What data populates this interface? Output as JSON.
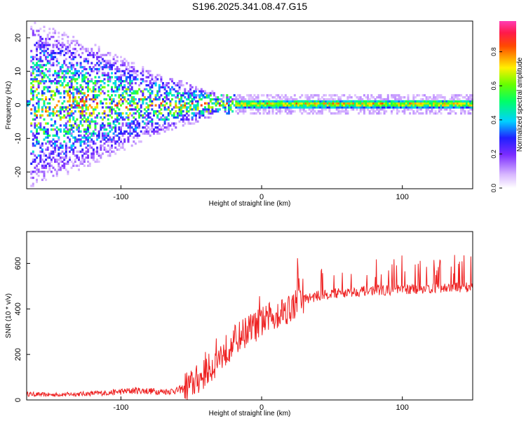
{
  "figure_title": "S196.2025.341.08.47.G15",
  "chart_data": [
    {
      "type": "heatmap",
      "title": "S196.2025.341.08.47.G15",
      "xlabel": "Height of straight line (km)",
      "ylabel": "Frequency (Hz)",
      "xlim": [
        -167,
        150
      ],
      "ylim": [
        -25,
        25
      ],
      "xticks": [
        -100,
        0,
        100
      ],
      "yticks": [
        -20,
        -10,
        0,
        10,
        20
      ],
      "colorbar": {
        "label": "Normalized spectral amplitude",
        "range": [
          0,
          0.98
        ],
        "ticks": [
          "0.0",
          "0.2",
          "0.4",
          "0.6",
          "0.8"
        ]
      },
      "ridge": [
        {
          "x": -165,
          "spread": 25
        },
        {
          "x": -120,
          "spread": 18
        },
        {
          "x": -80,
          "spread": 10
        },
        {
          "x": -50,
          "spread": 6
        },
        {
          "x": -30,
          "spread": 3
        },
        {
          "x": -20,
          "spread": 1.5
        },
        {
          "x": 150,
          "spread": 1.5
        }
      ]
    },
    {
      "type": "line",
      "xlabel": "Height of straight line (km)",
      "ylabel": "SNR (10 * v/v)",
      "xlim": [
        -167,
        150
      ],
      "ylim": [
        0,
        740
      ],
      "xticks": [
        -100,
        0,
        100
      ],
      "yticks": [
        0,
        200,
        400,
        600
      ],
      "series": [
        {
          "name": "SNR",
          "color": "#ee2222",
          "x": [
            -167,
            -150,
            -130,
            -110,
            -100,
            -90,
            -80,
            -70,
            -60,
            -50,
            -40,
            -30,
            -20,
            -10,
            0,
            10,
            20,
            30,
            40,
            50,
            60,
            70,
            80,
            90,
            100,
            110,
            120,
            130,
            140,
            150
          ],
          "y": [
            25,
            22,
            25,
            30,
            35,
            40,
            38,
            35,
            40,
            60,
            110,
            180,
            250,
            300,
            330,
            370,
            400,
            440,
            455,
            465,
            470,
            475,
            480,
            480,
            482,
            485,
            488,
            490,
            492,
            495
          ]
        }
      ]
    }
  ]
}
